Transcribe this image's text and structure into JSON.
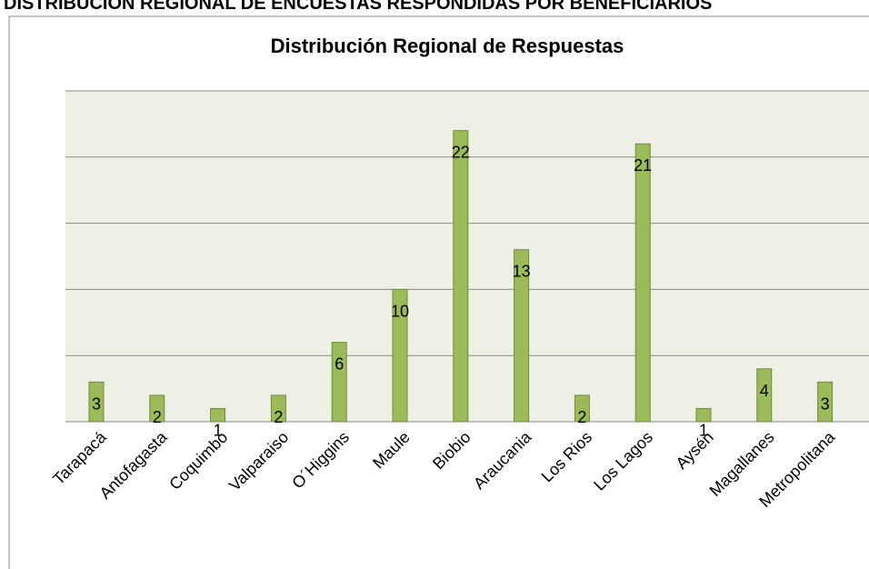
{
  "heading": "DISTRIBUCIÓN REGIONAL DE ENCUESTAS RESPONDIDAS POR BENEFICIARIOS",
  "chart_data": {
    "type": "bar",
    "title": "Distribución Regional de Respuestas",
    "categories": [
      "Tarapacá",
      "Antofagasta",
      "Coquimbo",
      "Valparaiso",
      "O´Higgins",
      "Maule",
      "Biobio",
      "Araucania",
      "Los Rios",
      "Los Lagos",
      "Aysén",
      "Magallanes",
      "Metropolitana"
    ],
    "values": [
      3,
      2,
      1,
      2,
      6,
      10,
      22,
      13,
      2,
      21,
      1,
      4,
      3
    ],
    "color": "#9bbb59",
    "ylim": [
      0,
      25
    ],
    "yticks": [
      0,
      5,
      10,
      15,
      20,
      25
    ],
    "grid": true
  }
}
